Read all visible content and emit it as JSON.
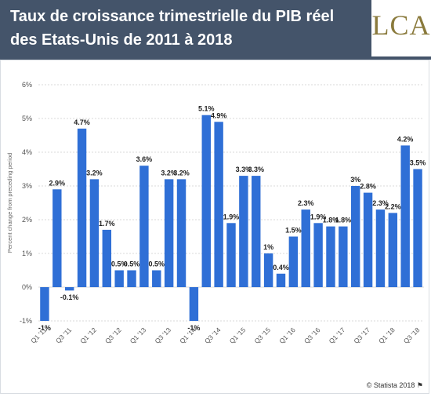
{
  "header": {
    "title": "Taux de croissance trimestrielle du PIB réel des Etats-Unis de 2011 à 2018",
    "logo_text": "LCA"
  },
  "footer": {
    "credit": "© Statista 2018"
  },
  "colors": {
    "bar": "#2f6fd6",
    "header_bg": "#44546a",
    "grid": "#d9d9d9"
  },
  "chart_data": {
    "type": "bar",
    "ylabel": "Percent change from preceding period",
    "ylim": [
      -1,
      6
    ],
    "yticks": [
      -1,
      0,
      1,
      2,
      3,
      4,
      5,
      6
    ],
    "ytick_labels": [
      "-1%",
      "0%",
      "1%",
      "2%",
      "3%",
      "4%",
      "5%",
      "6%"
    ],
    "grid": "horizontal",
    "categories": [
      "Q1 '11",
      "Q2 '11",
      "Q3 '11",
      "Q4 '11",
      "Q1 '12",
      "Q2 '12",
      "Q3 '12",
      "Q4 '12",
      "Q1 '13",
      "Q2 '13",
      "Q3 '13",
      "Q4 '13",
      "Q1 '14",
      "Q2 '14",
      "Q3 '14",
      "Q4 '14",
      "Q1 '15",
      "Q2 '15",
      "Q3 '15",
      "Q4 '15",
      "Q1 '16",
      "Q2 '16",
      "Q3 '16",
      "Q4 '16",
      "Q1 '17",
      "Q2 '17",
      "Q3 '17",
      "Q4 '17",
      "Q1 '18",
      "Q2 '18",
      "Q3 '18"
    ],
    "values": [
      -1,
      2.9,
      -0.1,
      4.7,
      3.2,
      1.7,
      0.5,
      0.5,
      3.6,
      0.5,
      3.2,
      3.2,
      -1,
      5.1,
      4.9,
      1.9,
      3.3,
      3.3,
      1,
      0.4,
      1.5,
      2.3,
      1.9,
      1.8,
      1.8,
      3,
      2.8,
      2.3,
      2.2,
      4.2,
      3.5
    ],
    "data_labels": [
      "-1%",
      "2.9%",
      "-0.1%",
      "4.7%",
      "3.2%",
      "1.7%",
      "0.5%",
      "0.5%",
      "3.6%",
      "0.5%",
      "3.2%",
      "3.2%",
      "-1%",
      "5.1%",
      "4.9%",
      "1.9%",
      "3.3%",
      "3.3%",
      "1%",
      "0.4%",
      "1.5%",
      "2.3%",
      "1.9%",
      "1.8%",
      "1.8%",
      "3%",
      "2.8%",
      "2.3%",
      "2.2%",
      "4.2%",
      "3.5%"
    ],
    "visible_xtick_labels": [
      "Q1 '11",
      "Q3 '11",
      "Q1 '12",
      "Q3 '12",
      "Q1 '13",
      "Q3 '13",
      "Q1 '14",
      "Q3 '14",
      "Q1 '15",
      "Q3 '15",
      "Q1 '16",
      "Q3 '16",
      "Q1 '17",
      "Q3 '17",
      "Q1 '18",
      "Q3 '18"
    ]
  }
}
